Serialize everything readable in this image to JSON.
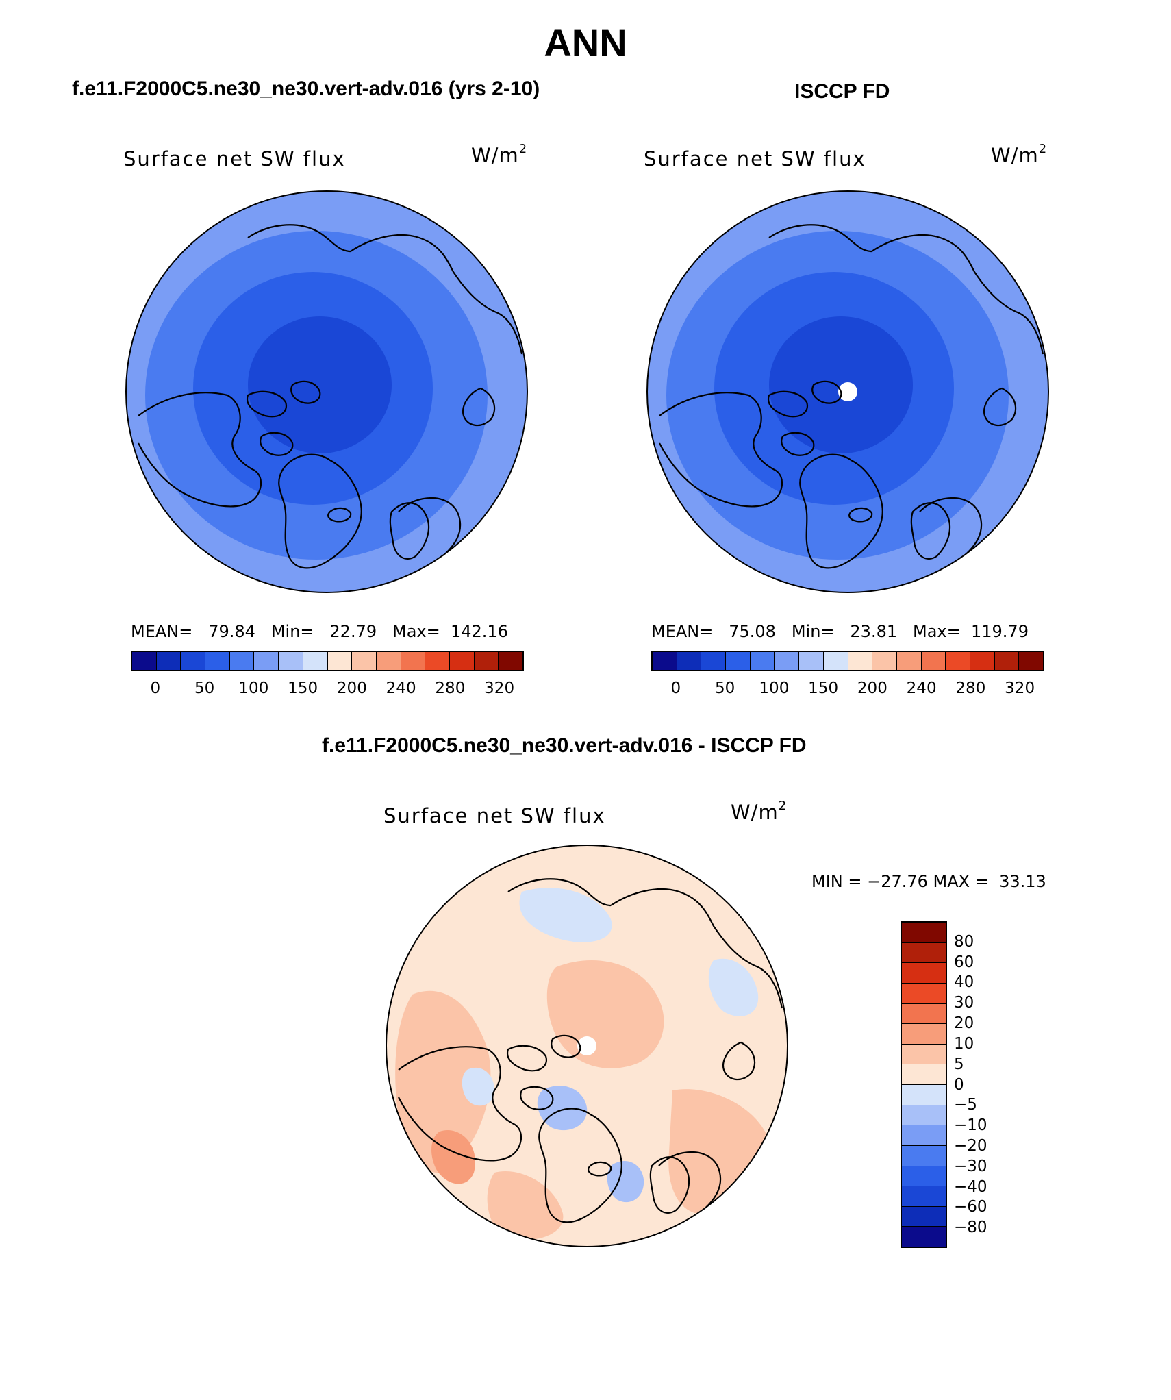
{
  "page_title": "ANN",
  "panel_left": {
    "header": "f.e11.F2000C5.ne30_ne30.vert-adv.016 (yrs 2-10)",
    "variable": "Surface net SW flux",
    "units_base": "W/m",
    "units_exp": "2",
    "stats": "MEAN=   79.84   Min=   22.79   Max=  142.16"
  },
  "panel_right": {
    "header": "ISCCP FD",
    "variable": "Surface net SW flux",
    "units_base": "W/m",
    "units_exp": "2",
    "stats": "MEAN=   75.08   Min=   23.81   Max=  119.79"
  },
  "panel_diff": {
    "header": "f.e11.F2000C5.ne30_ne30.vert-adv.016 - ISCCP FD",
    "variable": "Surface net SW flux",
    "units_base": "W/m",
    "units_exp": "2",
    "minmax": "MIN = −27.76 MAX =  33.13"
  },
  "colorbar_abs": {
    "colors": [
      "#0b0b8c",
      "#0d2db8",
      "#1a47d6",
      "#2b5fe8",
      "#4a7bf0",
      "#7a9df5",
      "#a8c0f8",
      "#d4e3fa",
      "#fde6d4",
      "#fbc4a8",
      "#f79d7a",
      "#f2744f",
      "#eb4a26",
      "#d62f12",
      "#b0200a",
      "#800800"
    ],
    "tick_labels": [
      "0",
      "50",
      "100",
      "150",
      "200",
      "240",
      "280",
      "320"
    ]
  },
  "colorbar_diff": {
    "colors_top_to_bottom": [
      "#800800",
      "#b0200a",
      "#d62f12",
      "#eb4a26",
      "#f2744f",
      "#f79d7a",
      "#fbc4a8",
      "#fde6d4",
      "#d4e3fa",
      "#a8c0f8",
      "#7a9df5",
      "#4a7bf0",
      "#2b5fe8",
      "#1a47d6",
      "#0d2db8",
      "#0b0b8c"
    ],
    "tick_labels_top_to_bottom": [
      "80",
      "60",
      "40",
      "30",
      "20",
      "10",
      "5",
      "0",
      "−5",
      "−10",
      "−20",
      "−30",
      "−40",
      "−60",
      "−80"
    ]
  },
  "map_colors": {
    "model_outer": "#7a9df5",
    "model_mid": "#4a7bf0",
    "model_inner": "#2b5fe8",
    "model_core": "#1a47d6",
    "obs_outer": "#7a9df5",
    "obs_mid": "#4a7bf0",
    "obs_inner": "#2b5fe8",
    "obs_core": "#1a47d6",
    "diff_base": "#fde6d4",
    "diff_warm": "#fbc4a8",
    "diff_warm2": "#f79d7a",
    "diff_cool": "#d4e3fa",
    "diff_cool2": "#a8c0f8",
    "coast": "#000000",
    "missing": "#ffffff"
  }
}
